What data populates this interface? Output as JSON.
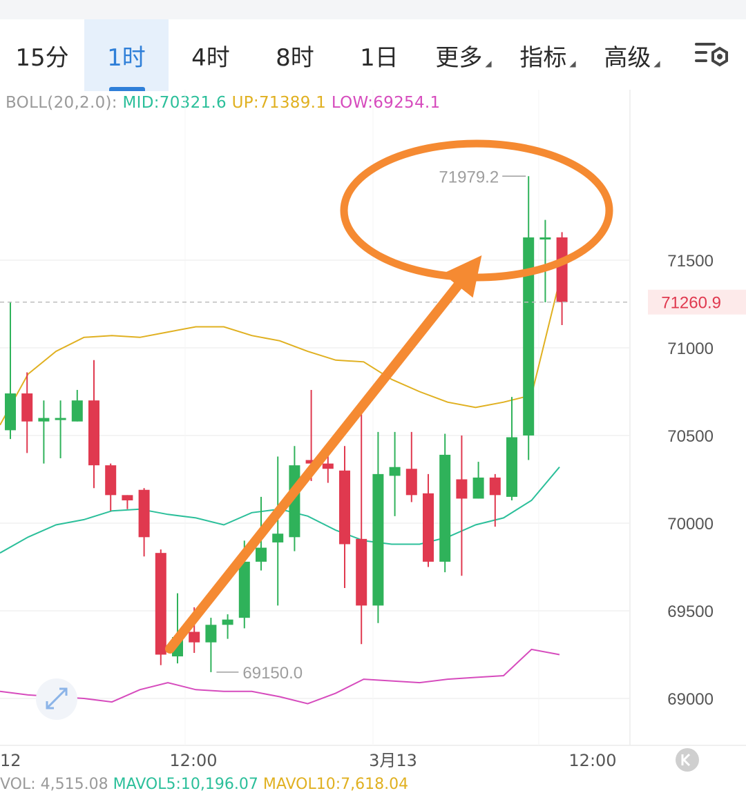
{
  "tabs": [
    {
      "label": "15分",
      "active": false,
      "dropdown": false
    },
    {
      "label": "1时",
      "active": true,
      "dropdown": false
    },
    {
      "label": "4时",
      "active": false,
      "dropdown": false
    },
    {
      "label": "8时",
      "active": false,
      "dropdown": false
    },
    {
      "label": "1日",
      "active": false,
      "dropdown": false
    },
    {
      "label": "更多",
      "active": false,
      "dropdown": true
    },
    {
      "label": "指标",
      "active": false,
      "dropdown": true
    },
    {
      "label": "高级",
      "active": false,
      "dropdown": true
    }
  ],
  "indicator": {
    "name": "BOLL(20,2.0):",
    "mid": "MID:70321.6",
    "up": "UP:71389.1",
    "low": "LOW:69254.1"
  },
  "volume": {
    "vol": "VOL: 4,515.08",
    "mavol5": "MAVOL5:10,196.07",
    "mavol10": "MAVOL10:7,618.04"
  },
  "colors": {
    "up_candle": "#2fb25a",
    "down_candle": "#e0394f",
    "mid_line": "#2bbf9a",
    "up_line": "#e0b020",
    "low_line": "#d64bbd",
    "annotation": "#f58a32",
    "active_tab": "#2f7fd8"
  },
  "chart_data": {
    "type": "candlestick",
    "y_ticks": [
      "71500",
      "71000",
      "70500",
      "70000",
      "69500",
      "69000"
    ],
    "x_ticks": [
      "12",
      "12:00",
      "3月13",
      "12:00"
    ],
    "current_price": "71260.9",
    "high_label": "71979.2",
    "low_label": "69150.0",
    "ylim": [
      68900,
      72350
    ],
    "candles": [
      {
        "o": 70530,
        "h": 71260,
        "l": 70480,
        "c": 70740
      },
      {
        "o": 70740,
        "h": 70860,
        "l": 70400,
        "c": 70580
      },
      {
        "o": 70580,
        "h": 70700,
        "l": 70340,
        "c": 70600
      },
      {
        "o": 70590,
        "h": 70700,
        "l": 70370,
        "c": 70600
      },
      {
        "o": 70580,
        "h": 70760,
        "l": 70580,
        "c": 70700
      },
      {
        "o": 70700,
        "h": 70930,
        "l": 70200,
        "c": 70330
      },
      {
        "o": 70330,
        "h": 70340,
        "l": 70070,
        "c": 70160
      },
      {
        "o": 70160,
        "h": 70160,
        "l": 70080,
        "c": 70130
      },
      {
        "o": 70190,
        "h": 70200,
        "l": 69810,
        "c": 69920
      },
      {
        "o": 69830,
        "h": 69850,
        "l": 69190,
        "c": 69250
      },
      {
        "o": 69240,
        "h": 69600,
        "l": 69200,
        "c": 69350
      },
      {
        "o": 69380,
        "h": 69520,
        "l": 69260,
        "c": 69320
      },
      {
        "o": 69320,
        "h": 69460,
        "l": 69150,
        "c": 69420
      },
      {
        "o": 69420,
        "h": 69480,
        "l": 69340,
        "c": 69450
      },
      {
        "o": 69460,
        "h": 69900,
        "l": 69400,
        "c": 69780
      },
      {
        "o": 69780,
        "h": 70150,
        "l": 69730,
        "c": 69860
      },
      {
        "o": 69890,
        "h": 70380,
        "l": 69530,
        "c": 69940
      },
      {
        "o": 69920,
        "h": 70440,
        "l": 69840,
        "c": 70330
      },
      {
        "o": 70360,
        "h": 70760,
        "l": 70240,
        "c": 70340
      },
      {
        "o": 70340,
        "h": 70430,
        "l": 70230,
        "c": 70310
      },
      {
        "o": 70300,
        "h": 70440,
        "l": 69630,
        "c": 69880
      },
      {
        "o": 69910,
        "h": 70620,
        "l": 69310,
        "c": 69530
      },
      {
        "o": 69530,
        "h": 70520,
        "l": 69430,
        "c": 70280
      },
      {
        "o": 70270,
        "h": 70520,
        "l": 70040,
        "c": 70320
      },
      {
        "o": 70310,
        "h": 70520,
        "l": 70120,
        "c": 70160
      },
      {
        "o": 70170,
        "h": 70280,
        "l": 69750,
        "c": 69780
      },
      {
        "o": 69780,
        "h": 70510,
        "l": 69720,
        "c": 70390
      },
      {
        "o": 70250,
        "h": 70500,
        "l": 69700,
        "c": 70140
      },
      {
        "o": 70140,
        "h": 70350,
        "l": 70140,
        "c": 70260
      },
      {
        "o": 70260,
        "h": 70280,
        "l": 69980,
        "c": 70160
      },
      {
        "o": 70150,
        "h": 70720,
        "l": 70130,
        "c": 70490
      },
      {
        "o": 70500,
        "h": 71979.2,
        "l": 70360,
        "c": 71630
      },
      {
        "o": 71630,
        "h": 71730,
        "l": 71260,
        "c": 71630
      },
      {
        "o": 71630,
        "h": 71660,
        "l": 71130,
        "c": 71260.9
      }
    ],
    "series": [
      {
        "key": "up",
        "values": [
          70560,
          70850,
          70980,
          71060,
          71070,
          71060,
          71090,
          71120,
          71120,
          71070,
          71040,
          70980,
          70930,
          70920,
          70820,
          70750,
          70690,
          70660,
          70690,
          70730,
          71380
        ]
      },
      {
        "key": "mid",
        "values": [
          69830,
          69920,
          69990,
          70020,
          70070,
          70080,
          70050,
          70030,
          69990,
          70060,
          70080,
          70040,
          69960,
          69900,
          69880,
          69880,
          69920,
          69990,
          70030,
          70130,
          70320
        ]
      },
      {
        "key": "low",
        "values": [
          69040,
          69020,
          69010,
          69000,
          68980,
          69050,
          69090,
          69050,
          69040,
          69040,
          69010,
          68970,
          69030,
          69110,
          69100,
          69090,
          69110,
          69120,
          69130,
          69280,
          69250
        ]
      }
    ]
  }
}
